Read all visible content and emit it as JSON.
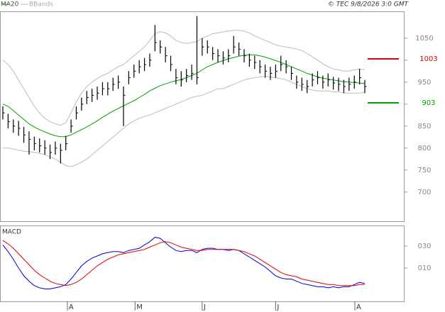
{
  "chart_data": [
    {
      "type": "ohlc",
      "credit": "© TEC 9/8/2026 3:0 GMT",
      "xlim": [
        0,
        69
      ],
      "ylim": [
        632,
        1111
      ],
      "yticks": [
        700,
        750,
        800,
        850,
        900,
        950,
        1000,
        1050
      ],
      "bar_color": "#000000",
      "high": [
        895,
        878,
        865,
        862,
        848,
        838,
        826,
        822,
        818,
        808,
        815,
        810,
        828,
        865,
        895,
        915,
        930,
        935,
        940,
        950,
        950,
        960,
        965,
        940,
        975,
        990,
        1000,
        1005,
        1015,
        1080,
        1045,
        1030,
        1010,
        980,
        975,
        980,
        990,
        1100,
        1050,
        1045,
        1030,
        1025,
        1020,
        1025,
        1055,
        1040,
        1025,
        1015,
        1010,
        1000,
        990,
        985,
        990,
        1010,
        1000,
        985,
        965,
        960,
        955,
        970,
        975,
        965,
        970,
        962,
        960,
        955,
        960,
        965,
        980,
        955
      ],
      "low": [
        865,
        845,
        835,
        828,
        812,
        785,
        795,
        790,
        785,
        775,
        785,
        765,
        795,
        835,
        865,
        885,
        900,
        905,
        910,
        920,
        920,
        930,
        935,
        850,
        945,
        960,
        970,
        975,
        985,
        1020,
        1015,
        995,
        975,
        945,
        940,
        950,
        955,
        945,
        1010,
        1015,
        1000,
        995,
        990,
        995,
        1015,
        1010,
        995,
        985,
        980,
        970,
        960,
        955,
        960,
        975,
        970,
        955,
        935,
        930,
        925,
        940,
        945,
        935,
        940,
        933,
        930,
        925,
        930,
        935,
        945,
        925
      ],
      "close": [
        880,
        860,
        850,
        845,
        830,
        820,
        810,
        805,
        800,
        790,
        800,
        795,
        810,
        850,
        880,
        900,
        915,
        920,
        925,
        935,
        935,
        945,
        950,
        920,
        960,
        975,
        985,
        990,
        1000,
        1040,
        1030,
        1010,
        990,
        960,
        955,
        965,
        970,
        960,
        1030,
        1030,
        1015,
        1010,
        1005,
        1010,
        1030,
        1025,
        1010,
        1000,
        995,
        985,
        975,
        970,
        975,
        990,
        985,
        970,
        950,
        945,
        940,
        955,
        960,
        950,
        955,
        948,
        945,
        940,
        945,
        950,
        960,
        940
      ],
      "series": [
        {
          "name": "MA20",
          "color": "#00a000",
          "values": [
            900,
            895,
            885,
            875,
            865,
            855,
            848,
            842,
            837,
            832,
            828,
            826,
            826,
            830,
            836,
            842,
            848,
            855,
            862,
            870,
            877,
            884,
            890,
            896,
            902,
            908,
            915,
            922,
            930,
            936,
            942,
            946,
            950,
            953,
            956,
            960,
            965,
            970,
            978,
            985,
            990,
            995,
            999,
            1003,
            1006,
            1009,
            1011,
            1012,
            1012,
            1010,
            1007,
            1003,
            999,
            995,
            990,
            985,
            980,
            975,
            970,
            966,
            962,
            959,
            957,
            955,
            953,
            951,
            950,
            949,
            948,
            947
          ]
        }
      ],
      "bands": {
        "name": "BBands",
        "color": "#bbbbbb",
        "upper": [
          1000,
          990,
          975,
          955,
          935,
          915,
          895,
          880,
          868,
          860,
          855,
          852,
          858,
          880,
          905,
          925,
          940,
          950,
          958,
          965,
          970,
          978,
          985,
          990,
          1000,
          1010,
          1020,
          1030,
          1045,
          1060,
          1065,
          1062,
          1055,
          1045,
          1040,
          1038,
          1040,
          1042,
          1050,
          1055,
          1060,
          1062,
          1064,
          1066,
          1068,
          1068,
          1066,
          1062,
          1055,
          1050,
          1045,
          1040,
          1035,
          1032,
          1030,
          1028,
          1025,
          1022,
          1015,
          1008,
          1000,
          992,
          985,
          980,
          978,
          975,
          975,
          978,
          980,
          978
        ],
        "lower": [
          800,
          800,
          798,
          795,
          793,
          792,
          790,
          788,
          785,
          780,
          775,
          768,
          760,
          758,
          762,
          768,
          775,
          785,
          795,
          805,
          815,
          825,
          835,
          845,
          855,
          862,
          868,
          872,
          875,
          880,
          885,
          890,
          895,
          900,
          905,
          910,
          915,
          918,
          920,
          925,
          930,
          935,
          935,
          940,
          945,
          950,
          955,
          958,
          960,
          962,
          963,
          962,
          960,
          958,
          955,
          950,
          945,
          940,
          935,
          932,
          930,
          930,
          930,
          928,
          928,
          925,
          925,
          925,
          925,
          927
        ]
      },
      "levels": [
        {
          "value": 1003,
          "color": "#dd0000"
        },
        {
          "value": 903,
          "color": "#00a000"
        }
      ]
    },
    {
      "type": "macd",
      "title": "MACD",
      "xlim": [
        0,
        69
      ],
      "ylim": [
        -20.3,
        48.7
      ],
      "yticks": [
        {
          "value": 10,
          "label": "010"
        },
        {
          "value": 30,
          "label": "030"
        }
      ],
      "xticks": [
        {
          "value": 12.3,
          "label": "A"
        },
        {
          "value": 25.2,
          "label": "M"
        },
        {
          "value": 38,
          "label": "J"
        },
        {
          "value": 52,
          "label": "J"
        },
        {
          "value": 67.1,
          "label": "A"
        }
      ],
      "series": [
        {
          "color": "#0000dd",
          "values": [
            31,
            25,
            18,
            10,
            3,
            -2,
            -6,
            -8,
            -9,
            -9,
            -8,
            -7,
            -5,
            0,
            6,
            12,
            16,
            19,
            21,
            23,
            24,
            25,
            25,
            24,
            26,
            27,
            28,
            31,
            34,
            38,
            37,
            33,
            29,
            26,
            25,
            26,
            26,
            24,
            27,
            28,
            28,
            27,
            27,
            26,
            27,
            26,
            23,
            20,
            17,
            14,
            11,
            7,
            3,
            1,
            0,
            0,
            -2,
            -4,
            -5,
            -6,
            -7,
            -7,
            -8,
            -7,
            -8,
            -7,
            -7,
            -5,
            -3,
            -4
          ]
        },
        {
          "color": "#dd0000",
          "values": [
            35,
            32,
            28,
            23,
            18,
            13,
            8,
            4,
            1,
            -2,
            -4,
            -5,
            -6,
            -5,
            -3,
            0,
            4,
            8,
            12,
            15,
            18,
            20,
            22,
            23,
            24,
            25,
            26,
            27,
            29,
            31,
            33,
            34,
            33,
            31,
            29,
            28,
            27,
            26,
            26,
            27,
            27,
            27,
            27,
            27,
            27,
            26,
            25,
            23,
            21,
            18,
            15,
            12,
            9,
            6,
            4,
            3,
            2,
            0,
            -1,
            -2,
            -3,
            -4,
            -5,
            -5,
            -6,
            -6,
            -6,
            -6,
            -5,
            -5
          ]
        }
      ]
    }
  ]
}
